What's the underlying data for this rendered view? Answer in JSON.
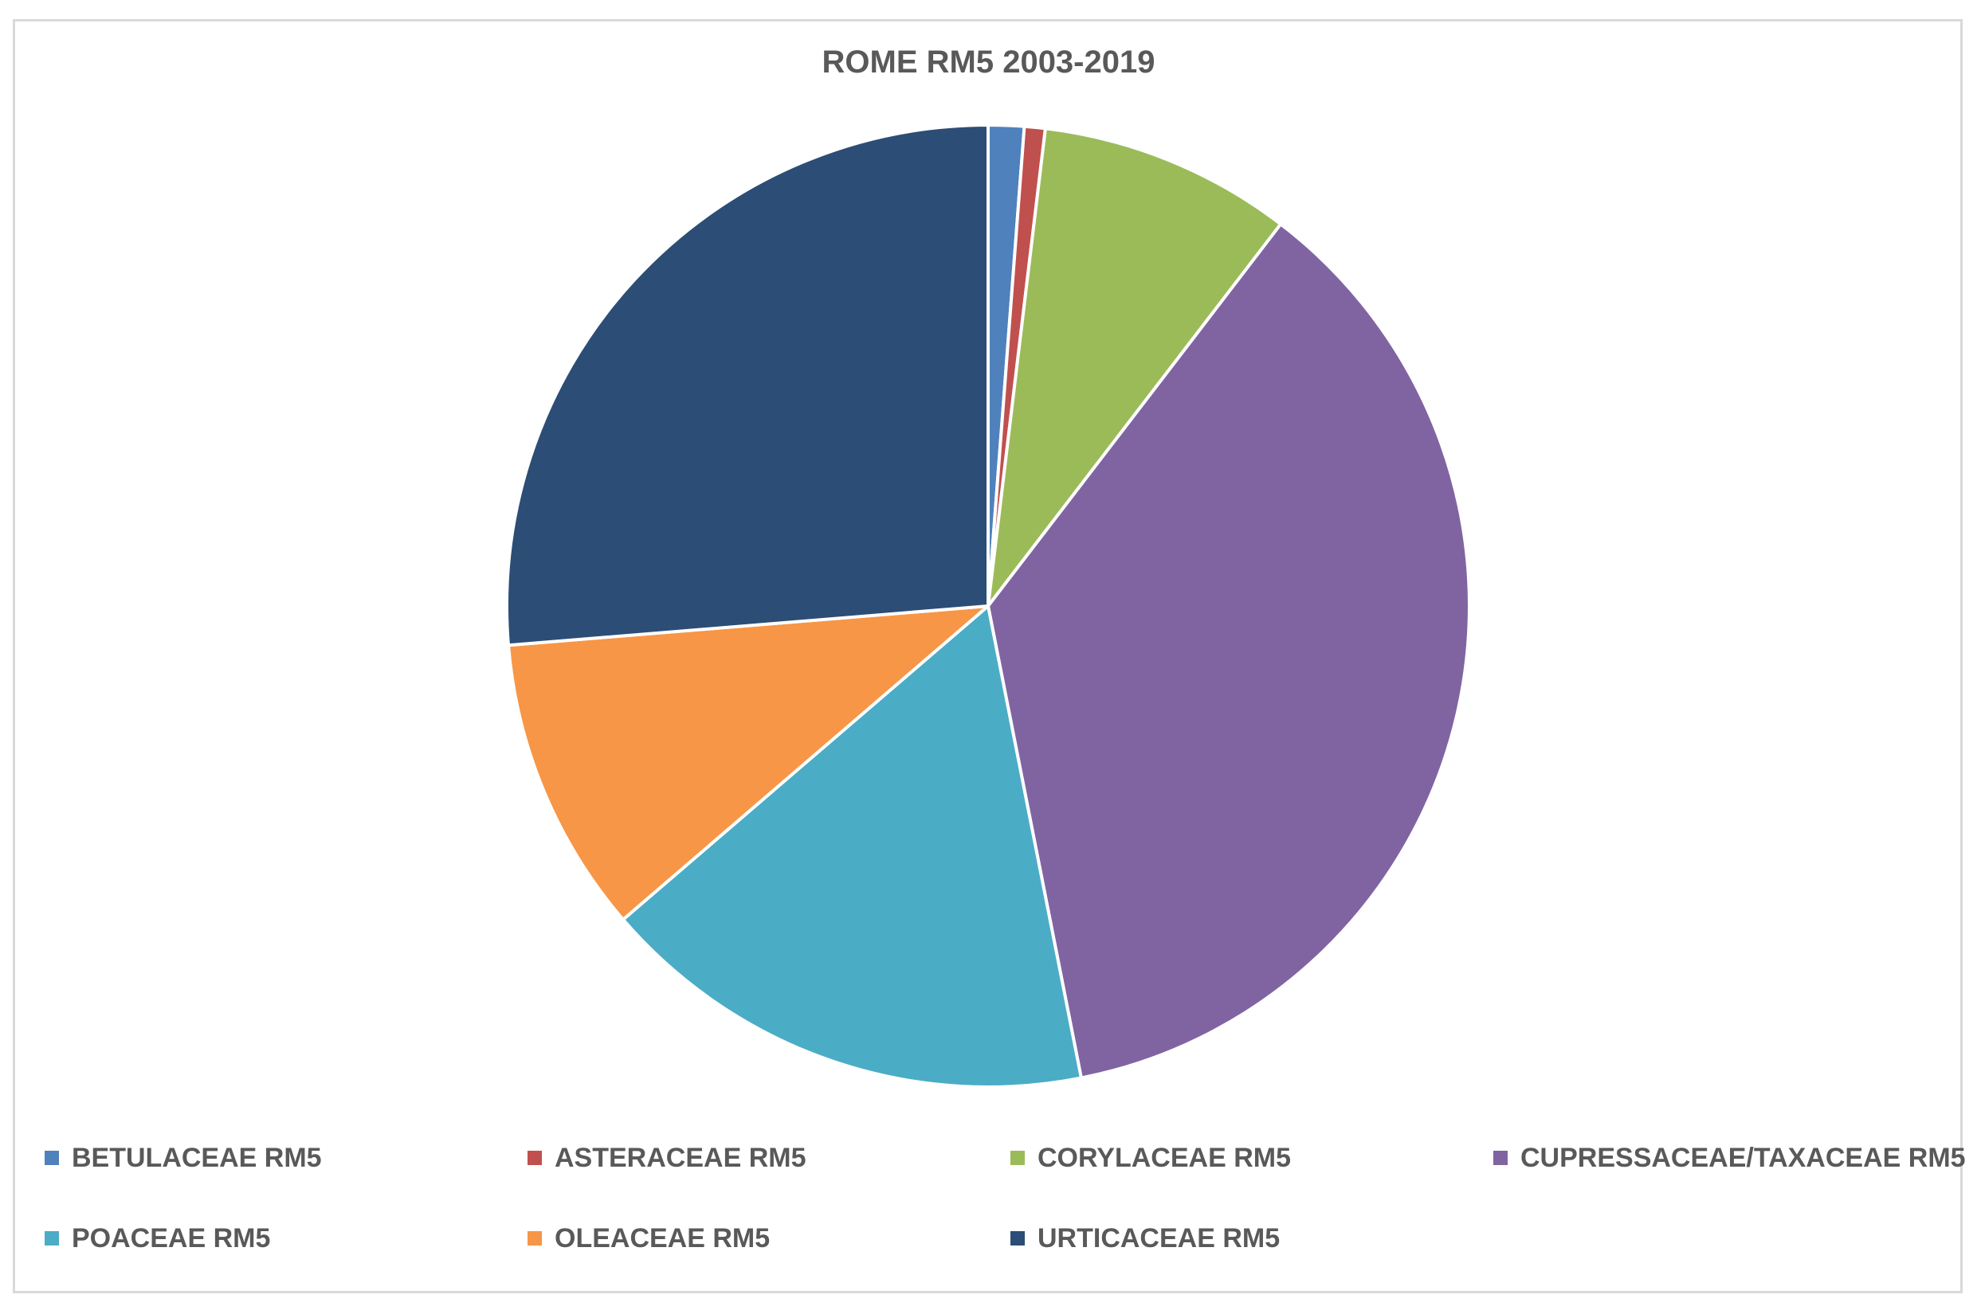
{
  "chart_data": {
    "type": "pie",
    "title": "ROME RM5 2003-2019",
    "start_angle_deg": 0,
    "direction": "clockwise",
    "slices": [
      {
        "name": "BETULACEAE RM5",
        "value": 1.2,
        "color": "#4F81BD"
      },
      {
        "name": "ASTERACEAE RM5",
        "value": 0.7,
        "color": "#C0504D"
      },
      {
        "name": "CORYLACEAE RM5",
        "value": 8.5,
        "color": "#9BBB59"
      },
      {
        "name": "CUPRESSACEAE/TAXACEAE RM5",
        "value": 36.5,
        "color": "#8064A2"
      },
      {
        "name": "POACEAE RM5",
        "value": 16.8,
        "color": "#4BACC6"
      },
      {
        "name": "OLEACEAE RM5",
        "value": 10.0,
        "color": "#F79646"
      },
      {
        "name": "URTICACEAE RM5",
        "value": 26.3,
        "color": "#2C4D75"
      }
    ],
    "legend_position": "bottom"
  }
}
